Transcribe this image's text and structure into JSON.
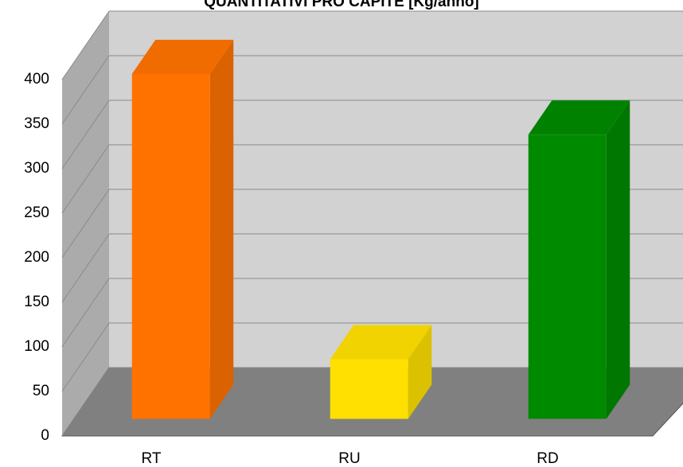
{
  "chart_data": {
    "type": "bar3d",
    "title": "QUANTITATIVI PRO CAPITE [Kg/anno]",
    "categories": [
      "RT",
      "RU",
      "RD"
    ],
    "values": [
      387,
      67,
      319
    ],
    "colors": [
      "#ff7200",
      "#ffe000",
      "#008a00"
    ],
    "ylim": [
      0,
      400
    ],
    "yticks": [
      0,
      50,
      100,
      150,
      200,
      250,
      300,
      350,
      400
    ],
    "grid": true
  }
}
